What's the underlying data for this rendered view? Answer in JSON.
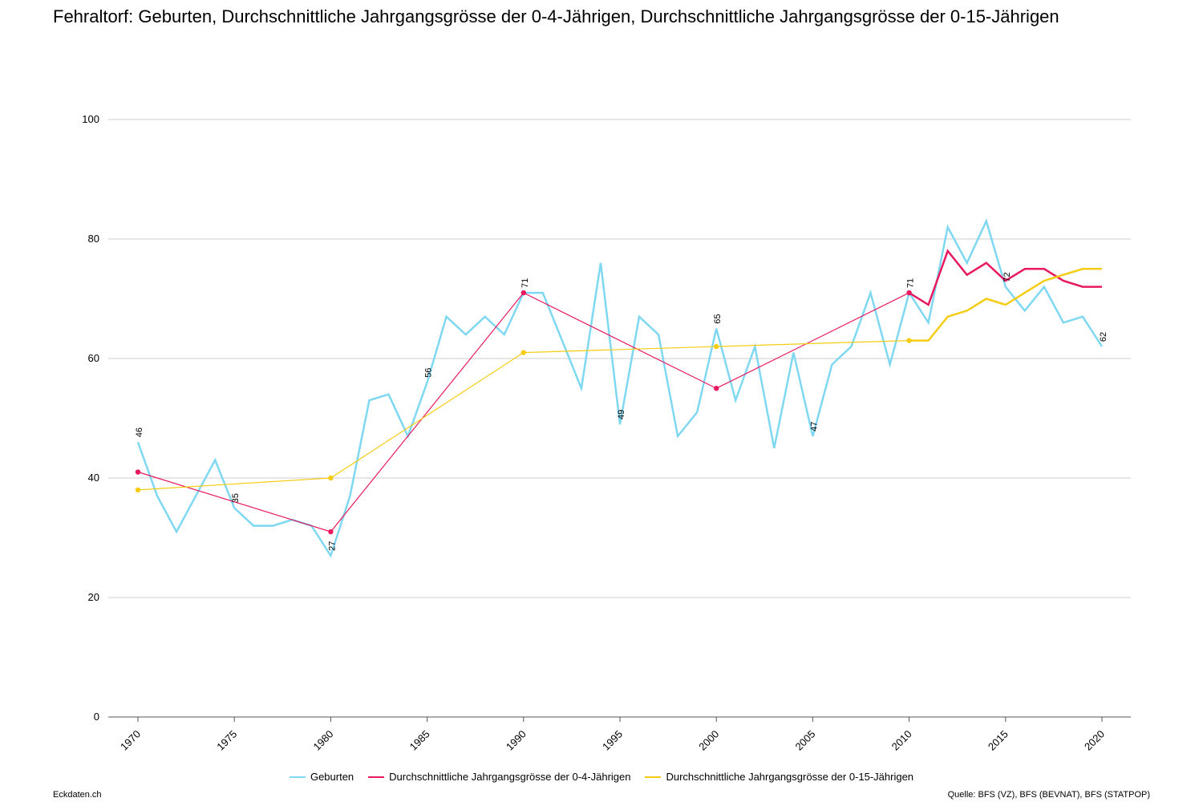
{
  "title": "Fehraltorf: Geburten, Durchschnittliche Jahrgangsgrösse der 0-4-Jährigen, Durchschnittliche Jahrgangsgrösse der 0-15-Jährigen",
  "footer": {
    "left": "Eckdaten.ch",
    "right": "Quelle: BFS (VZ), BFS (BEVNAT), BFS (STATPOP)"
  },
  "colors": {
    "geburten": "#7fd8f2",
    "avg_0_4": "#e8195e",
    "avg_0_15": "#f5cc14",
    "grid": "#cccccc"
  },
  "chart_data": {
    "type": "line",
    "xlim": [
      1970,
      2020
    ],
    "ylim": [
      0,
      100
    ],
    "x_ticks": [
      1970,
      1975,
      1980,
      1985,
      1990,
      1995,
      2000,
      2005,
      2010,
      2015,
      2020
    ],
    "y_ticks": [
      0,
      20,
      40,
      60,
      80,
      100
    ],
    "grid": true,
    "legend_position": "bottom",
    "series": [
      {
        "name": "Geburten",
        "x": [
          1970,
          1971,
          1972,
          1973,
          1974,
          1975,
          1976,
          1977,
          1978,
          1979,
          1980,
          1981,
          1982,
          1983,
          1984,
          1985,
          1986,
          1987,
          1988,
          1989,
          1990,
          1991,
          1992,
          1993,
          1994,
          1995,
          1996,
          1997,
          1998,
          1999,
          2000,
          2001,
          2002,
          2003,
          2004,
          2005,
          2006,
          2007,
          2008,
          2009,
          2010,
          2011,
          2012,
          2013,
          2014,
          2015,
          2016,
          2017,
          2018,
          2019,
          2020
        ],
        "values": [
          46,
          37,
          31,
          37,
          43,
          35,
          32,
          32,
          33,
          32,
          27,
          37,
          53,
          54,
          47,
          56,
          67,
          64,
          67,
          64,
          71,
          71,
          63,
          55,
          76,
          49,
          67,
          64,
          47,
          51,
          65,
          53,
          62,
          45,
          61,
          47,
          59,
          62,
          71,
          59,
          71,
          66,
          82,
          76,
          83,
          72,
          68,
          72,
          66,
          67,
          62
        ],
        "labels": {
          "1970": "46",
          "1975": "35",
          "1980": "27",
          "1985": "56",
          "1990": "71",
          "1995": "49",
          "2000": "65",
          "2005": "47",
          "2010": "71",
          "2015": "72",
          "2020": "62"
        }
      },
      {
        "name": "Durchschnittliche Jahrgangsgrösse der 0-4-Jährigen",
        "x": [
          1970,
          1980,
          1990,
          2000,
          2010,
          2011,
          2012,
          2013,
          2014,
          2015,
          2016,
          2017,
          2018,
          2019,
          2020
        ],
        "values": [
          41,
          31,
          71,
          55,
          71,
          69,
          78,
          74,
          76,
          73,
          75,
          75,
          73,
          72,
          72
        ],
        "markers": [
          1970,
          1980,
          1990,
          2000,
          2010
        ]
      },
      {
        "name": "Durchschnittliche Jahrgangsgrösse der 0-15-Jährigen",
        "x": [
          1970,
          1980,
          1990,
          2000,
          2010,
          2011,
          2012,
          2013,
          2014,
          2015,
          2016,
          2017,
          2018,
          2019,
          2020
        ],
        "values": [
          38,
          40,
          61,
          62,
          63,
          63,
          67,
          68,
          70,
          69,
          71,
          73,
          74,
          75,
          75
        ],
        "markers": [
          1970,
          1980,
          1990,
          2000,
          2010
        ]
      }
    ]
  }
}
